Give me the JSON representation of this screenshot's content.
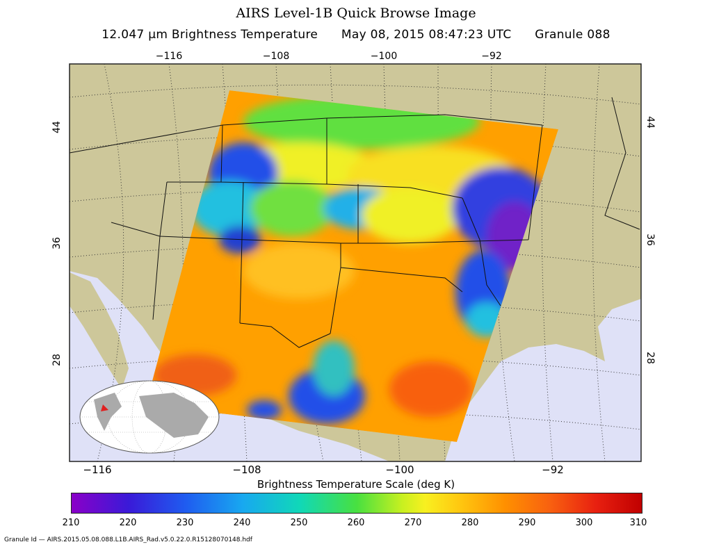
{
  "title": "AIRS Level-1B Quick Browse Image",
  "subtitle": {
    "channel": "12.047 µm Brightness Temperature",
    "datetime": "May 08, 2015 08:47:23 UTC",
    "granule": "Granule 088"
  },
  "top_ticks": [
    "−116",
    "−108",
    "−100",
    "−92"
  ],
  "bottom_ticks": [
    "−116",
    "−108",
    "−100",
    "−92"
  ],
  "left_ticks": [
    "44",
    "36",
    "28"
  ],
  "right_ticks": [
    "44",
    "36",
    "28"
  ],
  "colorbar": {
    "label": "Brightness Temperature Scale (deg K)",
    "ticks": [
      "210",
      "220",
      "230",
      "240",
      "250",
      "260",
      "270",
      "280",
      "290",
      "300",
      "310"
    ]
  },
  "granule_id": "Granule Id — AIRS.2015.05.08.088.L1B.AIRS_Rad.v5.0.22.0.R15128070148.hdf",
  "colors": {
    "land": "#cdc79a",
    "ocean": "#dfe1f7",
    "swath_base": "#ffa500"
  }
}
